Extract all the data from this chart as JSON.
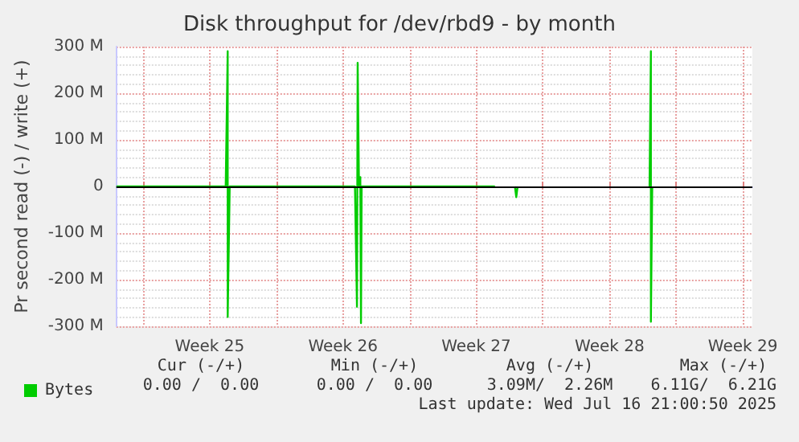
{
  "chart_data": {
    "type": "line",
    "title": "Disk throughput for /dev/rbd9 - by month",
    "ylabel": "Pr second read (-) / write (+)",
    "annotations": [
      "Cur (-/+)",
      "Min (-/+)",
      "Avg (-/+)",
      "Max (-/+)",
      "0.00 /  0.00",
      "0.00 /  0.00",
      "3.09M/  2.26M",
      "6.11G/  6.21G",
      "Last update: Wed Jul 16 21:00:50 2025"
    ],
    "series": [
      {
        "name": "Bytes",
        "color": "#00cc00",
        "x": [
          "2025-06-14T14:24",
          "2025-06-20T08:10",
          "2025-06-20T10:41",
          "2025-06-20T10:41",
          "2025-06-20T13:12",
          "2025-06-27T03:07",
          "2025-06-27T05:38",
          "2025-06-27T06:29",
          "2025-06-27T08:10",
          "2025-06-27T09:50",
          "2025-06-27T10:41",
          "2025-06-27T11:31",
          "2025-07-04T11:31",
          "2025-07-04T13:12",
          "2025-07-05T12:43",
          "2025-07-05T14:24",
          "2025-07-05T16:05",
          "2025-07-05T17:46",
          "2025-07-12T14:24",
          "2025-07-12T16:05",
          "2025-07-12T16:05",
          "2025-07-12T17:46"
        ],
        "values": [
          0,
          0,
          290,
          -280,
          0,
          0,
          -258,
          265,
          0,
          20,
          -293,
          0,
          0,
          null,
          0,
          -23,
          0,
          null,
          0,
          290,
          -290,
          0
        ]
      }
    ],
    "xlim": [
      "2025-06-14T14:24",
      "2025-07-18T00:00"
    ],
    "xticks": [
      {
        "value": "2025-06-16",
        "label": null
      },
      {
        "value": "2025-06-19T12:00",
        "label": "Week 25"
      },
      {
        "value": "2025-06-23",
        "label": null
      },
      {
        "value": "2025-06-26T12:00",
        "label": "Week 26"
      },
      {
        "value": "2025-06-30",
        "label": null
      },
      {
        "value": "2025-07-03T12:00",
        "label": "Week 27"
      },
      {
        "value": "2025-07-07",
        "label": null
      },
      {
        "value": "2025-07-10T12:00",
        "label": "Week 28"
      },
      {
        "value": "2025-07-14",
        "label": null
      },
      {
        "value": "2025-07-17T12:00",
        "label": "Week 29"
      }
    ],
    "ylim": [
      -300,
      300
    ],
    "yticks": [
      {
        "value": -300,
        "label": "-300 M"
      },
      {
        "value": -200,
        "label": "-200 M"
      },
      {
        "value": -100,
        "label": "-100 M"
      },
      {
        "value": 0,
        "label": "0"
      },
      {
        "value": 100,
        "label": "100 M"
      },
      {
        "value": 200,
        "label": "200 M"
      },
      {
        "value": 300,
        "label": "300 M"
      }
    ],
    "ref_lines": [
      {
        "axis": "y",
        "value": 0,
        "color": "#000000"
      }
    ],
    "grid": true,
    "legend": "bottom left",
    "marker": "none",
    "line_style": "solid"
  }
}
